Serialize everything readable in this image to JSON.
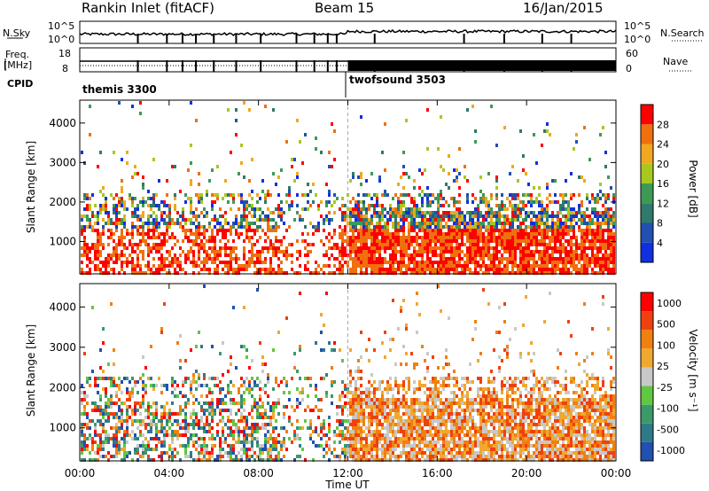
{
  "header": {
    "station": "Rankin Inlet (fitACF)",
    "beam": "Beam 15",
    "date": "16/Jan/2015"
  },
  "left_labels": {
    "nsky": "N.Sky",
    "freq": "Freq.",
    "freq_unit": "[MHz]",
    "cpid": "CPID"
  },
  "right_labels": {
    "nsearch": "N.Search",
    "nave": "Nave"
  },
  "nsky_ticks": [
    "10^5",
    "10^0"
  ],
  "nsearch_ticks": [
    "10^5",
    "10^0"
  ],
  "freq_ticks": [
    "18",
    "8"
  ],
  "nave_ticks": [
    "60",
    "0"
  ],
  "cpid_modes": [
    {
      "label": "themis 3300",
      "start_hour": 0
    },
    {
      "label": "twofsound 3503",
      "start_hour": 12
    }
  ],
  "chart_data": [
    {
      "type": "heatmap",
      "name": "power",
      "ylabel": "Slant Range [km]",
      "ylim": [
        180,
        4580
      ],
      "yticks": [
        1000,
        2000,
        3000,
        4000
      ],
      "xlim": [
        0,
        24
      ],
      "colorbar": {
        "label": "Power [dB]",
        "ticks": [
          "4",
          "8",
          "12",
          "16",
          "20",
          "24",
          "28"
        ],
        "colors": [
          "#1030e0",
          "#2050b0",
          "#2f7a6a",
          "#3d9a55",
          "#a8c820",
          "#f0a820",
          "#f07010",
          "#ff0000"
        ]
      }
    },
    {
      "type": "heatmap",
      "name": "velocity",
      "ylabel": "Slant Range [km]",
      "ylim": [
        180,
        4580
      ],
      "yticks": [
        1000,
        2000,
        3000,
        4000
      ],
      "xlim": [
        0,
        24
      ],
      "colorbar": {
        "label": "Velocity [m s⁻¹]",
        "ticks": [
          "1000",
          "500",
          "100",
          "25",
          "-25",
          "-100",
          "-500",
          "-1000"
        ],
        "colors": [
          "#2050b0",
          "#2f7a8a",
          "#3a9a6a",
          "#60c840",
          "#c8c8c8",
          "#f0a830",
          "#f08010",
          "#f04010",
          "#ff0000"
        ]
      }
    }
  ],
  "x_axis": {
    "ticks": [
      "00:00",
      "04:00",
      "08:00",
      "12:00",
      "16:00",
      "20:00",
      "00:00"
    ],
    "label": "Time UT"
  }
}
